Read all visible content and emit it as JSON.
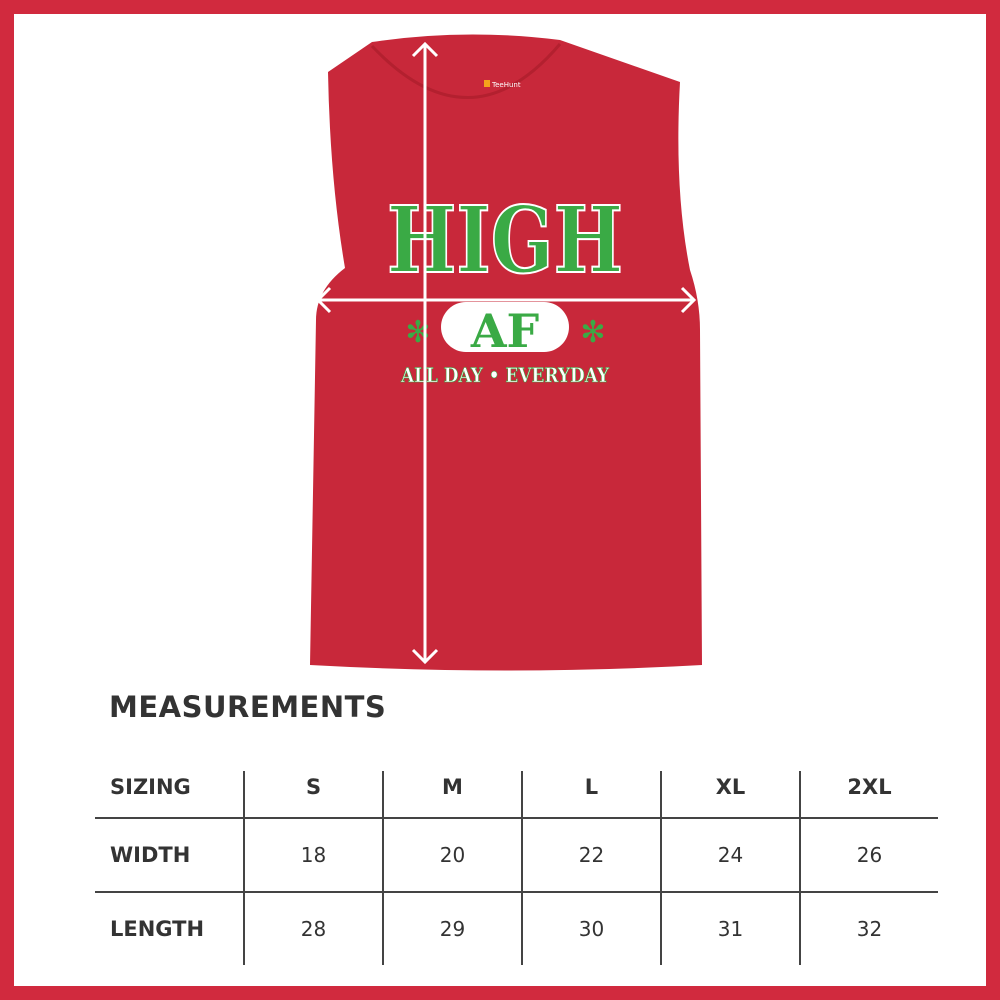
{
  "product": {
    "brand_label": "TeeHunt",
    "print": {
      "line1": "HIGH",
      "line2": "AF",
      "line3": "ALL DAY • EVERYDAY"
    },
    "colors": {
      "shirt": "#c8283a",
      "print_green": "#3aaa45",
      "frame": "#d12a3e"
    }
  },
  "measurements": {
    "title": "MEASUREMENTS",
    "header": [
      "SIZING",
      "S",
      "M",
      "L",
      "XL",
      "2XL"
    ],
    "rows": [
      [
        "WIDTH",
        "18",
        "20",
        "22",
        "24",
        "26"
      ],
      [
        "LENGTH",
        "28",
        "29",
        "30",
        "31",
        "32"
      ]
    ]
  }
}
